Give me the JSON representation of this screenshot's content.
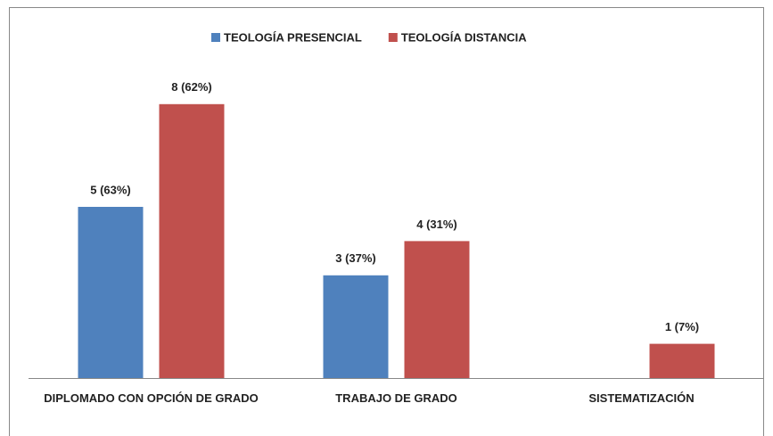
{
  "chart_data": {
    "type": "bar",
    "categories": [
      "DIPLOMADO CON OPCIÓN DE GRADO",
      "TRABAJO DE GRADO",
      "SISTEMATIZACIÓN"
    ],
    "series": [
      {
        "name": "TEOLOGÍA PRESENCIAL",
        "color": "#4f81bd",
        "values": [
          5,
          3,
          null
        ],
        "value_labels": [
          "5 (63%)",
          "3 (37%)",
          null
        ]
      },
      {
        "name": "TEOLOGÍA DISTANCIA",
        "color": "#c0504d",
        "values": [
          8,
          4,
          1
        ],
        "value_labels": [
          "8 (62%)",
          "4 (31%)",
          "1 (7%)"
        ]
      }
    ],
    "ylim": [
      0,
      9
    ],
    "legend": "top"
  }
}
